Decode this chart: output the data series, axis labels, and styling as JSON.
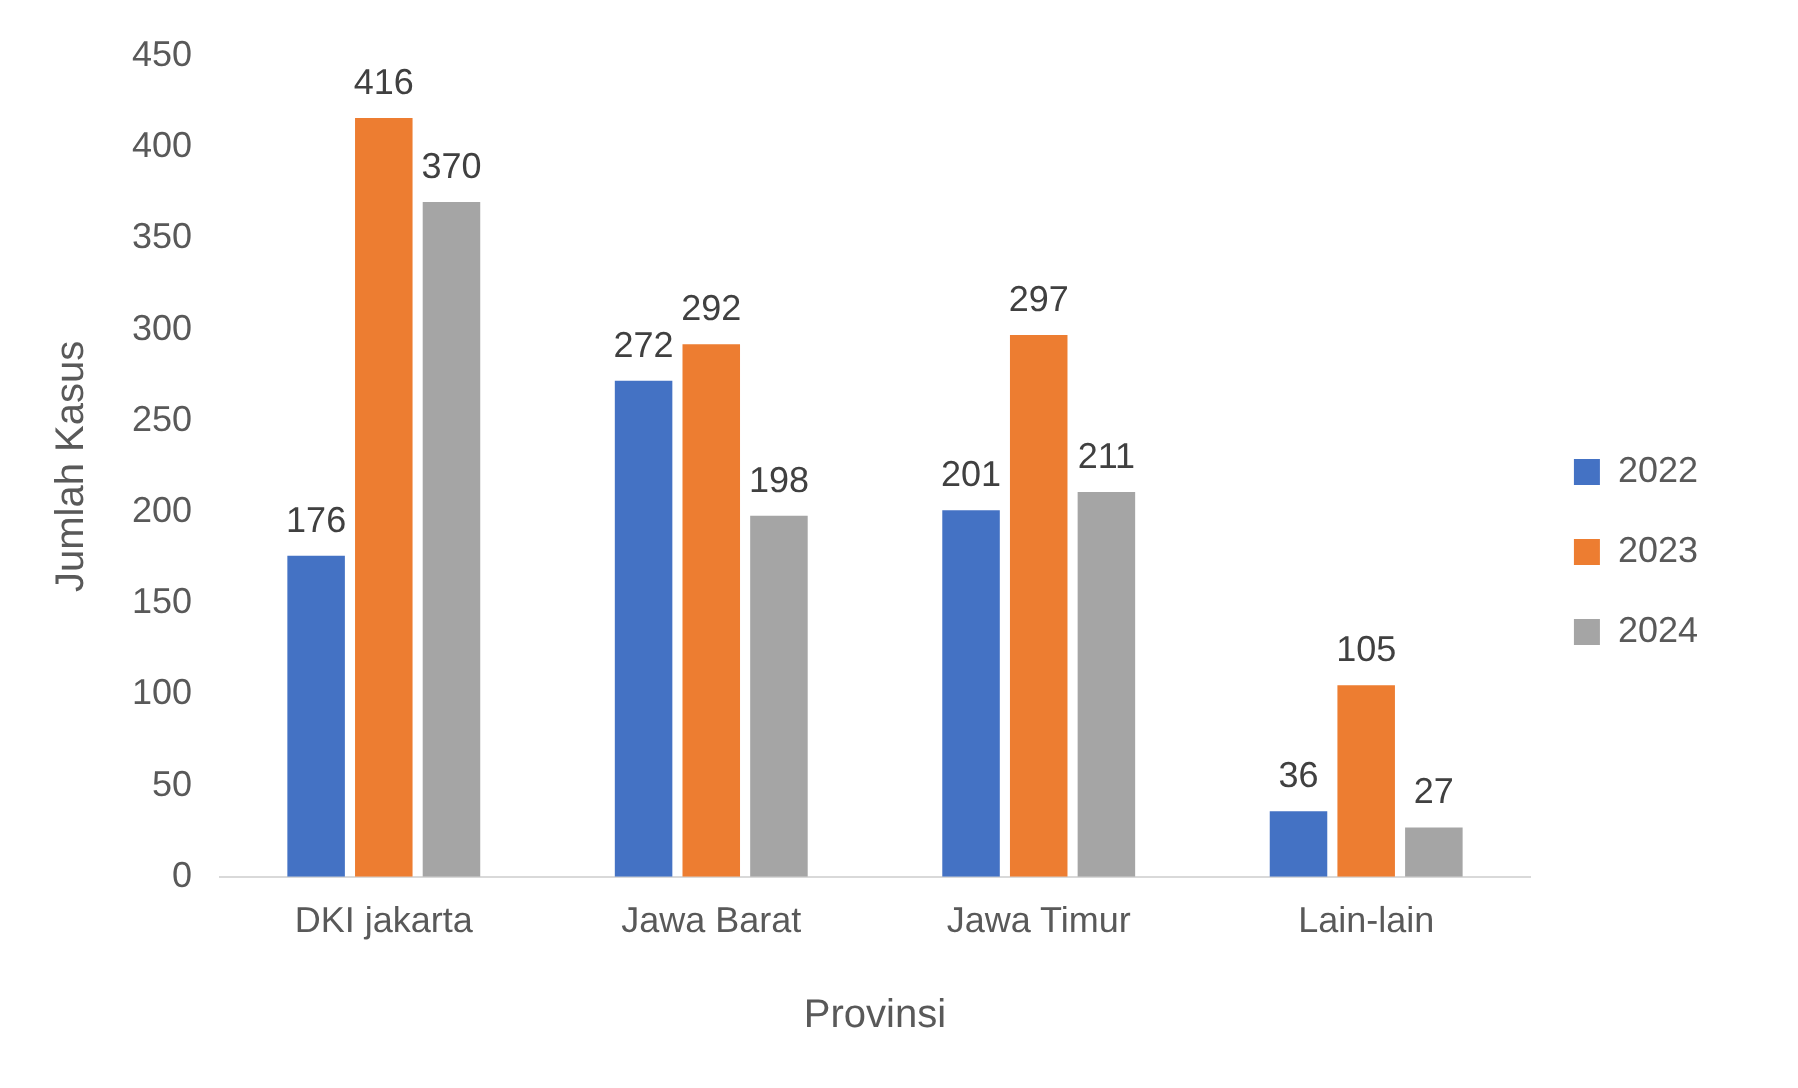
{
  "chart_data": {
    "type": "bar",
    "xlabel": "Provinsi",
    "ylabel": "Jumlah Kasus",
    "categories": [
      "DKI jakarta",
      "Jawa Barat",
      "Jawa Timur",
      "Lain-lain"
    ],
    "series": [
      {
        "name": "2022",
        "color": "#4472c4",
        "values": [
          176,
          272,
          201,
          36
        ]
      },
      {
        "name": "2023",
        "color": "#ed7d31",
        "values": [
          416,
          292,
          297,
          105
        ]
      },
      {
        "name": "2024",
        "color": "#a5a5a5",
        "values": [
          370,
          198,
          211,
          27
        ]
      }
    ],
    "ylim": [
      0,
      450
    ],
    "yticks": [
      0,
      50,
      100,
      150,
      200,
      250,
      300,
      350,
      400,
      450
    ],
    "grid": false,
    "legend": "right",
    "data_labels": true
  }
}
